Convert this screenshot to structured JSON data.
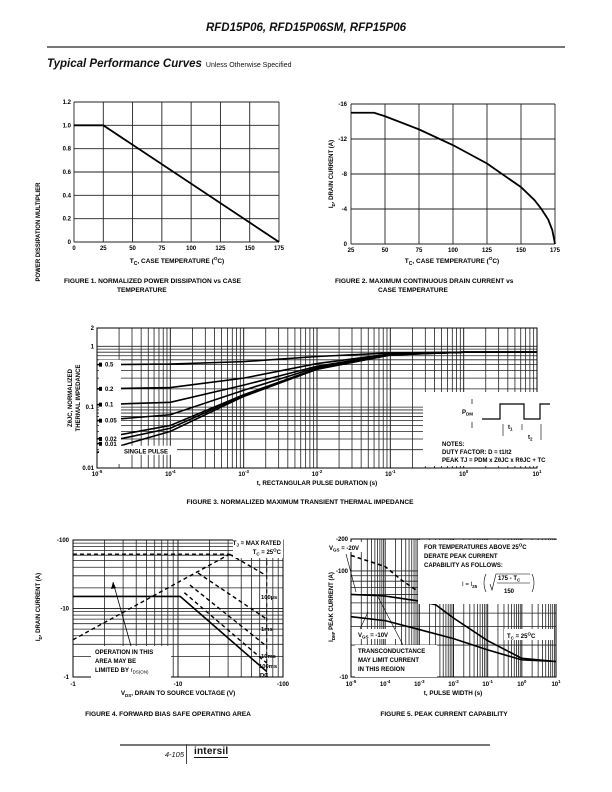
{
  "header": {
    "title": "RFD15P06, RFD15P06SM, RFP15P06"
  },
  "section": {
    "title": "Typical Performance Curves",
    "subtitle": "Unless Otherwise Specified"
  },
  "footer": {
    "page_number": "4-105",
    "logo": "intersil"
  },
  "chart_data": [
    {
      "type": "line",
      "id": "fig1",
      "title": "FIGURE 1.  NORMALIZED POWER DISSIPATION vs CASE TEMPERATURE",
      "caption_line1": "FIGURE 1.  NORMALIZED POWER DISSIPATION vs CASE",
      "caption_line2": "TEMPERATURE",
      "xlabel": "TC, CASE TEMPERATURE (°C)",
      "xlabel_main": "T",
      "xlabel_sub": "C",
      "xlabel_rest": ", CASE TEMPERATURE (",
      "xlabel_sup": "O",
      "xlabel_end": "C)",
      "ylabel": "POWER DISSIPATION MULTIPLIER",
      "xlim": [
        0,
        175
      ],
      "ylim": [
        0,
        1.2
      ],
      "xticks": [
        0,
        25,
        50,
        75,
        100,
        125,
        150,
        175
      ],
      "xtick_labels": [
        "0",
        "25",
        "50",
        "75",
        "100",
        "125",
        "150",
        "175"
      ],
      "yticks": [
        0,
        0.2,
        0.4,
        0.6,
        0.8,
        1.0,
        1.2
      ],
      "ytick_labels": [
        "0",
        "0.2",
        "0.4",
        "0.6",
        "0.8",
        "1.0",
        "1.2"
      ],
      "grid": true,
      "series": [
        {
          "name": "multiplier",
          "x": [
            0,
            25,
            175
          ],
          "y": [
            1.0,
            1.0,
            0
          ]
        }
      ]
    },
    {
      "type": "line",
      "id": "fig2",
      "caption_line1": "FIGURE 2.  MAXIMUM CONTINUOUS DRAIN CURRENT vs",
      "caption_line2": "CASE TEMPERATURE",
      "xlabel_main": "T",
      "xlabel_sub": "C",
      "xlabel_rest": ", CASE TEMPERATURE (",
      "xlabel_sup": "O",
      "xlabel_end": "C)",
      "ylabel_main": "I",
      "ylabel_sub": "D",
      "ylabel_rest": ", DRAIN CURRENT (A)",
      "xlim": [
        25,
        175
      ],
      "ylim": [
        0,
        -16
      ],
      "xticks": [
        25,
        50,
        75,
        100,
        125,
        150,
        175
      ],
      "xtick_labels": [
        "25",
        "50",
        "75",
        "100",
        "125",
        "150",
        "175"
      ],
      "yticks": [
        0,
        -4,
        -8,
        -12,
        -16
      ],
      "ytick_labels": [
        "0",
        "-4",
        "-8",
        "-12",
        "-16"
      ],
      "grid": true,
      "series": [
        {
          "name": "ID",
          "x": [
            25,
            42,
            50,
            75,
            100,
            125,
            150,
            160,
            165,
            170,
            173,
            175
          ],
          "y": [
            -15,
            -15,
            -14.6,
            -13.1,
            -11.3,
            -9.2,
            -6.5,
            -5.0,
            -4.0,
            -2.8,
            -1.6,
            0
          ]
        }
      ]
    },
    {
      "type": "line",
      "id": "fig3",
      "caption": "FIGURE 3.  NORMALIZED MAXIMUM TRANSIENT THERMAL IMPEDANCE",
      "xlabel": "t, RECTANGULAR PULSE DURATION (s)",
      "ylabel_line1": "ZθJC, NORMALIZED",
      "ylabel_line2": "THERMAL IMPEDANCE",
      "xscale": "log",
      "yscale": "log",
      "xlim": [
        1e-05,
        10
      ],
      "ylim": [
        0.01,
        2
      ],
      "xtick_exponents": [
        "-5",
        "-4",
        "-3",
        "-2",
        "-1",
        "0",
        "1"
      ],
      "ytick_labels": [
        "0.01",
        "0.1",
        "1",
        "2"
      ],
      "yticks": [
        0.01,
        0.1,
        1,
        2
      ],
      "grid": true,
      "series": [
        {
          "name": "0.5",
          "x": [
            1e-05,
            0.0001,
            0.001,
            0.01,
            0.1,
            1,
            10
          ],
          "y": [
            0.5,
            0.51,
            0.56,
            0.68,
            0.78,
            0.8,
            0.8
          ]
        },
        {
          "name": "0.2",
          "x": [
            1e-05,
            0.0001,
            0.001,
            0.01,
            0.1,
            1,
            10
          ],
          "y": [
            0.2,
            0.21,
            0.3,
            0.52,
            0.75,
            0.8,
            0.8
          ]
        },
        {
          "name": "0.1",
          "x": [
            1e-05,
            0.0001,
            0.001,
            0.01,
            0.1,
            1,
            10
          ],
          "y": [
            0.11,
            0.12,
            0.23,
            0.47,
            0.74,
            0.8,
            0.8
          ]
        },
        {
          "name": "0.05",
          "x": [
            1e-05,
            0.0001,
            0.001,
            0.01,
            0.1,
            1,
            10
          ],
          "y": [
            0.06,
            0.075,
            0.19,
            0.45,
            0.73,
            0.8,
            0.8
          ]
        },
        {
          "name": "0.02",
          "x": [
            1e-05,
            0.0001,
            0.001,
            0.01,
            0.1,
            1,
            10
          ],
          "y": [
            0.03,
            0.05,
            0.16,
            0.43,
            0.73,
            0.8,
            0.8
          ]
        },
        {
          "name": "0.01",
          "x": [
            1e-05,
            0.0001,
            0.001,
            0.01,
            0.1,
            1,
            10
          ],
          "y": [
            0.025,
            0.045,
            0.155,
            0.42,
            0.72,
            0.8,
            0.8
          ]
        },
        {
          "name": "SINGLE PULSE",
          "x": [
            1e-05,
            0.0001,
            0.001,
            0.01,
            0.1,
            1,
            10
          ],
          "y": [
            0.018,
            0.04,
            0.15,
            0.42,
            0.72,
            0.8,
            0.8
          ]
        }
      ],
      "legend_labels": [
        "0.5",
        "0.2",
        "0.1",
        "0.05",
        "0.02",
        "0.01",
        "SINGLE PULSE"
      ],
      "annotation": {
        "pdm": "P",
        "pdm_sub": "DM",
        "t1": "t",
        "t1_sub": "1",
        "t2": "t",
        "t2_sub": "2",
        "notes": "NOTES:",
        "duty": "DUTY FACTOR: D = t1/t2",
        "peak": "PEAK TJ = PDM x ZθJC x RθJC + TC"
      }
    },
    {
      "type": "line",
      "id": "fig4",
      "caption": "FIGURE 4.  FORWARD BIAS SAFE OPERATING AREA",
      "xlabel_main": "V",
      "xlabel_sub": "DS",
      "xlabel_rest": ", DRAIN TO SOURCE VOLTAGE (V)",
      "ylabel_main": "I",
      "ylabel_sub": "D",
      "ylabel_rest": ", DRAIN CURRENT (A)",
      "xscale": "log",
      "yscale": "log",
      "xlim": [
        -1,
        -100
      ],
      "ylim": [
        -1,
        -100
      ],
      "xtick_labels": [
        "-1",
        "-10",
        "-100"
      ],
      "ytick_labels": [
        "-1",
        "-10",
        "-100"
      ],
      "grid": true,
      "series": [
        {
          "name": "DC",
          "x": [
            1,
            10.5,
            70
          ],
          "y": [
            15,
            15,
            1.2
          ],
          "style": "solid"
        },
        {
          "name": "100ms",
          "x": [
            11.5,
            70
          ],
          "y": [
            17,
            1.6
          ],
          "style": "dashed"
        },
        {
          "name": "10ms",
          "x": [
            13,
            70
          ],
          "y": [
            22,
            2.8
          ],
          "style": "dashed"
        },
        {
          "name": "1ms",
          "x": [
            15.5,
            70
          ],
          "y": [
            33,
            7
          ],
          "style": "dashed"
        },
        {
          "name": "100µs",
          "x": [
            31,
            70
          ],
          "y": [
            62,
            30
          ],
          "style": "dashed"
        },
        {
          "name": "rDS(ON) limit",
          "x": [
            1,
            31
          ],
          "y": [
            3.5,
            62
          ],
          "style": "dashed"
        },
        {
          "name": "TJ max",
          "x": [
            1,
            31
          ],
          "y": [
            62,
            62
          ],
          "style": "dashed"
        }
      ],
      "labels": {
        "tj": "TJ = MAX RATED",
        "tj_main": "T",
        "tj_sub": "J",
        "tj_rest": " = MAX RATED",
        "tc_main": "T",
        "tc_sub": "C",
        "tc_rest": " = 25",
        "tc_sup": "O",
        "tc_end": "C",
        "l100us": "100µs",
        "l1ms": "1ms",
        "l10ms": "10ms",
        "l100ms": "100ms",
        "ldc": "DC",
        "op1": "OPERATION IN THIS",
        "op2": "AREA MAY BE",
        "op3": "LIMITED BY ",
        "op3_r": "r",
        "op3_sub": "DS(ON)"
      }
    },
    {
      "type": "line",
      "id": "fig5",
      "caption": "FIGURE 5.  PEAK CURRENT CAPABILITY",
      "xlabel": "t, PULSE WIDTH (s)",
      "ylabel_main": "I",
      "ylabel_sub": "DM",
      "ylabel_rest": ", PEAK CURRENT (A)",
      "xscale": "log",
      "yscale": "log",
      "xlim": [
        1e-05,
        10
      ],
      "ylim": [
        -10,
        -200
      ],
      "xtick_exponents": [
        "-5",
        "-4",
        "-3",
        "-2",
        "-1",
        "0",
        "1"
      ],
      "ytick_labels": [
        "-10",
        "-100",
        "-200"
      ],
      "grid": true,
      "series": [
        {
          "name": "VGS = -20V",
          "x": [
            1e-05,
            0.0001,
            0.001,
            0.003,
            0.01,
            0.1,
            1,
            10
          ],
          "y": [
            60,
            58,
            52,
            48,
            36,
            22,
            15,
            14
          ]
        },
        {
          "name": "VGS = -10V",
          "x": [
            1e-05,
            0.0001,
            0.001,
            0.01,
            0.1,
            1,
            10
          ],
          "y": [
            37,
            34,
            28,
            23,
            18,
            14.5,
            14
          ]
        },
        {
          "name": "transconductance",
          "x": [
            1e-05,
            0.0001,
            0.0003,
            0.001,
            0.003
          ],
          "y": [
            140,
            110,
            82,
            63,
            52
          ],
          "style": "dashed"
        }
      ],
      "labels": {
        "vgs20_main": "V",
        "vgs20_sub": "GS",
        "vgs20_rest": " = -20V",
        "vgs10_main": "V",
        "vgs10_sub": "GS",
        "vgs10_rest": " = -10V",
        "note1": "FOR TEMPERATURES ABOVE 25",
        "note1_sup": "O",
        "note1_end": "C",
        "note2": "DERATE PEAK CURRENT",
        "note3": "CAPABILITY AS FOLLOWS:",
        "formula_i": "I = I",
        "formula_sub": "25",
        "formula_num": "175 - T",
        "formula_num_sub": "C",
        "formula_den": "150",
        "tc_main": "T",
        "tc_sub": "C",
        "tc_rest": " = 25",
        "tc_sup": "O",
        "tc_end": "C",
        "tr1": "TRANSCONDUCTANCE",
        "tr2": "MAY LIMIT CURRENT",
        "tr3": "IN THIS REGION"
      }
    }
  ]
}
